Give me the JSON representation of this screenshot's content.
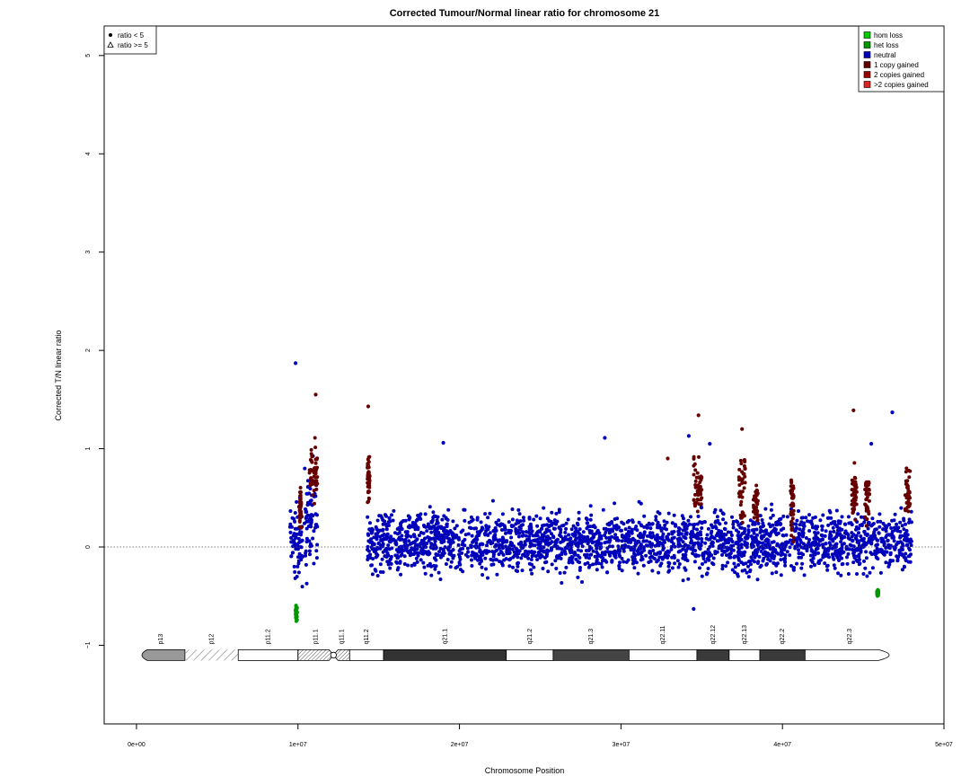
{
  "chart_data": {
    "type": "scatter",
    "title": "Corrected Tumour/Normal linear ratio for chromosome  21",
    "xlabel": "Chromosome Position",
    "ylabel": "Corrected T/N linear ratio",
    "xlim": [
      -2000000,
      50000000
    ],
    "ylim": [
      -1.8,
      5.3
    ],
    "xticks": [
      0,
      10000000,
      20000000,
      30000000,
      40000000,
      50000000
    ],
    "xtick_labels": [
      "0e+00",
      "1e+07",
      "2e+07",
      "3e+07",
      "4e+07",
      "5e+07"
    ],
    "yticks": [
      -1,
      0,
      1,
      2,
      3,
      4,
      5
    ],
    "ytick_labels": [
      "−1",
      "0",
      "1",
      "2",
      "3",
      "4",
      "5"
    ],
    "reference_line": {
      "y": 0,
      "style": "dotted"
    },
    "shape_legend": {
      "position": "top-left",
      "items": [
        {
          "label": "ratio < 5",
          "symbol": "filled-circle"
        },
        {
          "label": "ratio >= 5",
          "symbol": "open-triangle"
        }
      ]
    },
    "color_legend": {
      "position": "top-right",
      "items": [
        {
          "label": "hom loss",
          "color": "#00CC00"
        },
        {
          "label": "het loss",
          "color": "#009900"
        },
        {
          "label": "neutral",
          "color": "#0000BB"
        },
        {
          "label": "1 copy gained",
          "color": "#660000"
        },
        {
          "label": "2 copies gained",
          "color": "#990000"
        },
        {
          "label": ">2 copies gained",
          "color": "#DD2222"
        }
      ]
    },
    "series": [
      {
        "name": "neutral",
        "color": "#0000BB",
        "regions": [
          {
            "x": [
              9500000,
              10300000
            ],
            "y_range": [
              -0.5,
              0.7
            ]
          },
          {
            "x": [
              10400000,
              11200000
            ],
            "y_range": [
              -0.5,
              1.0
            ]
          },
          {
            "x": [
              14300000,
              48000000
            ],
            "y_range": [
              -0.45,
              0.55
            ]
          }
        ],
        "highlight_points": [
          {
            "x": 9850000,
            "y": 1.87
          },
          {
            "x": 46800000,
            "y": 1.37
          },
          {
            "x": 29000000,
            "y": 1.11
          },
          {
            "x": 19000000,
            "y": 1.06
          },
          {
            "x": 45500000,
            "y": 1.05
          },
          {
            "x": 34200000,
            "y": 1.13
          },
          {
            "x": 35500000,
            "y": 1.05
          },
          {
            "x": 34500000,
            "y": -0.63
          }
        ]
      },
      {
        "name": "1 copy gained",
        "color": "#660000",
        "regions": [
          {
            "x": [
              10100000,
              10200000
            ],
            "y_range": [
              0.0,
              0.8
            ]
          },
          {
            "x": [
              10700000,
              11200000
            ],
            "y_range": [
              0.2,
              1.35
            ]
          },
          {
            "x": [
              14300000,
              14450000
            ],
            "y_range": [
              0.2,
              1.15
            ]
          },
          {
            "x": [
              34500000,
              35000000
            ],
            "y_range": [
              0.15,
              1.1
            ]
          },
          {
            "x": [
              37300000,
              37700000
            ],
            "y_range": [
              0.0,
              1.2
            ]
          },
          {
            "x": [
              38200000,
              38500000
            ],
            "y_range": [
              0.1,
              0.8
            ]
          },
          {
            "x": [
              40500000,
              40700000
            ],
            "y_range": [
              -0.2,
              1.05
            ]
          },
          {
            "x": [
              44300000,
              44600000
            ],
            "y_range": [
              0.1,
              1.05
            ]
          },
          {
            "x": [
              45100000,
              45400000
            ],
            "y_range": [
              0.1,
              0.9
            ]
          },
          {
            "x": [
              47600000,
              47900000
            ],
            "y_range": [
              0.1,
              1.0
            ]
          }
        ],
        "highlight_points": [
          {
            "x": 11100000,
            "y": 1.55
          },
          {
            "x": 14350000,
            "y": 1.43
          },
          {
            "x": 34800000,
            "y": 1.34
          },
          {
            "x": 44400000,
            "y": 1.39
          },
          {
            "x": 37500000,
            "y": 1.2
          },
          {
            "x": 32900000,
            "y": 0.9
          }
        ]
      },
      {
        "name": "het loss",
        "color": "#009900",
        "regions": [
          {
            "x": [
              9850000,
              9950000
            ],
            "y_range": [
              -0.78,
              -0.55
            ]
          },
          {
            "x": [
              45850000,
              45950000
            ],
            "y_range": [
              -0.52,
              -0.42
            ]
          }
        ]
      }
    ],
    "ideogram": {
      "y": -1.1,
      "bands": [
        {
          "name": "p13",
          "start": 0,
          "end": 3000000,
          "stain": "gvar"
        },
        {
          "name": "p12",
          "start": 3000000,
          "end": 6300000,
          "stain": "stalk"
        },
        {
          "name": "p11.2",
          "start": 6300000,
          "end": 10000000,
          "stain": "gneg"
        },
        {
          "name": "p11.1",
          "start": 10000000,
          "end": 12200000,
          "stain": "acen"
        },
        {
          "name": "q11.1",
          "start": 12200000,
          "end": 13200000,
          "stain": "acen"
        },
        {
          "name": "q11.2",
          "start": 13200000,
          "end": 15300000,
          "stain": "gneg"
        },
        {
          "name": "q21.1",
          "start": 15300000,
          "end": 22900000,
          "stain": "gpos100"
        },
        {
          "name": "q21.2",
          "start": 22900000,
          "end": 25800000,
          "stain": "gneg"
        },
        {
          "name": "q21.3",
          "start": 25800000,
          "end": 30500000,
          "stain": "gpos75"
        },
        {
          "name": "q22.11",
          "start": 30500000,
          "end": 34700000,
          "stain": "gneg"
        },
        {
          "name": "q22.12",
          "start": 34700000,
          "end": 36700000,
          "stain": "gpos50"
        },
        {
          "name": "q22.13",
          "start": 36700000,
          "end": 38600000,
          "stain": "gneg"
        },
        {
          "name": "q22.2",
          "start": 38600000,
          "end": 41400000,
          "stain": "gpos50"
        },
        {
          "name": "q22.3",
          "start": 41400000,
          "end": 46944323,
          "stain": "gneg"
        }
      ]
    },
    "grid": false,
    "legend_placement": [
      "top-left",
      "top-right"
    ]
  }
}
